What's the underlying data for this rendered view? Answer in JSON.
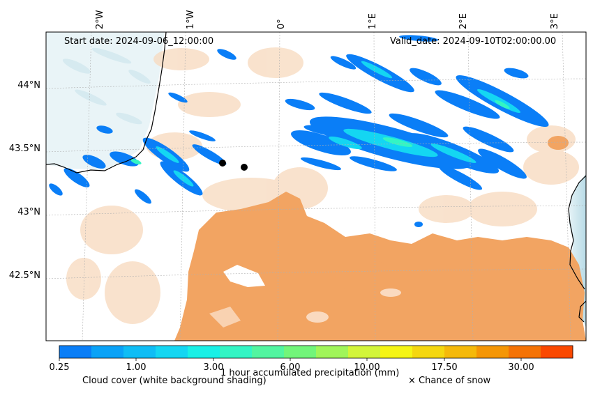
{
  "map": {
    "start_date": "Start date: 2024-09-06_12:00:00",
    "valid_date": "Valid_date: 2024-09-10T02:00:00.00",
    "lon_labels": [
      "2°W",
      "1°W",
      "0°",
      "1°E",
      "2°E",
      "3°E"
    ],
    "lat_labels": [
      "44°N",
      "43.5°N",
      "43°N",
      "42.5°N"
    ],
    "points": [
      {
        "lon": -0.85,
        "lat": 43.38
      },
      {
        "lon": -0.62,
        "lat": 43.35
      }
    ]
  },
  "legend": {
    "precip_title": "1 hour accumulated precipitation (mm)",
    "cloud_label": "Cloud cover (white background shading)",
    "snow_label": "× Chance of snow",
    "ticks": [
      "0.25",
      "1.00",
      "3.00",
      "6.00",
      "10.00",
      "17.50",
      "30.00"
    ],
    "colors": [
      "#0a7ef7",
      "#0aa2f7",
      "#0fbdf5",
      "#14d6f2",
      "#19f0e6",
      "#33f5c4",
      "#52f5a0",
      "#72f57a",
      "#a0f55a",
      "#d2f53a",
      "#f5f514",
      "#f5d70f",
      "#f5b90a",
      "#f59605",
      "#f57305",
      "#fa4800"
    ]
  },
  "colors": {
    "cloud_orange": "#f2a462",
    "cloud_light": "#f7d2b0",
    "sea": "#c6e2ec",
    "coast": "#000000"
  }
}
